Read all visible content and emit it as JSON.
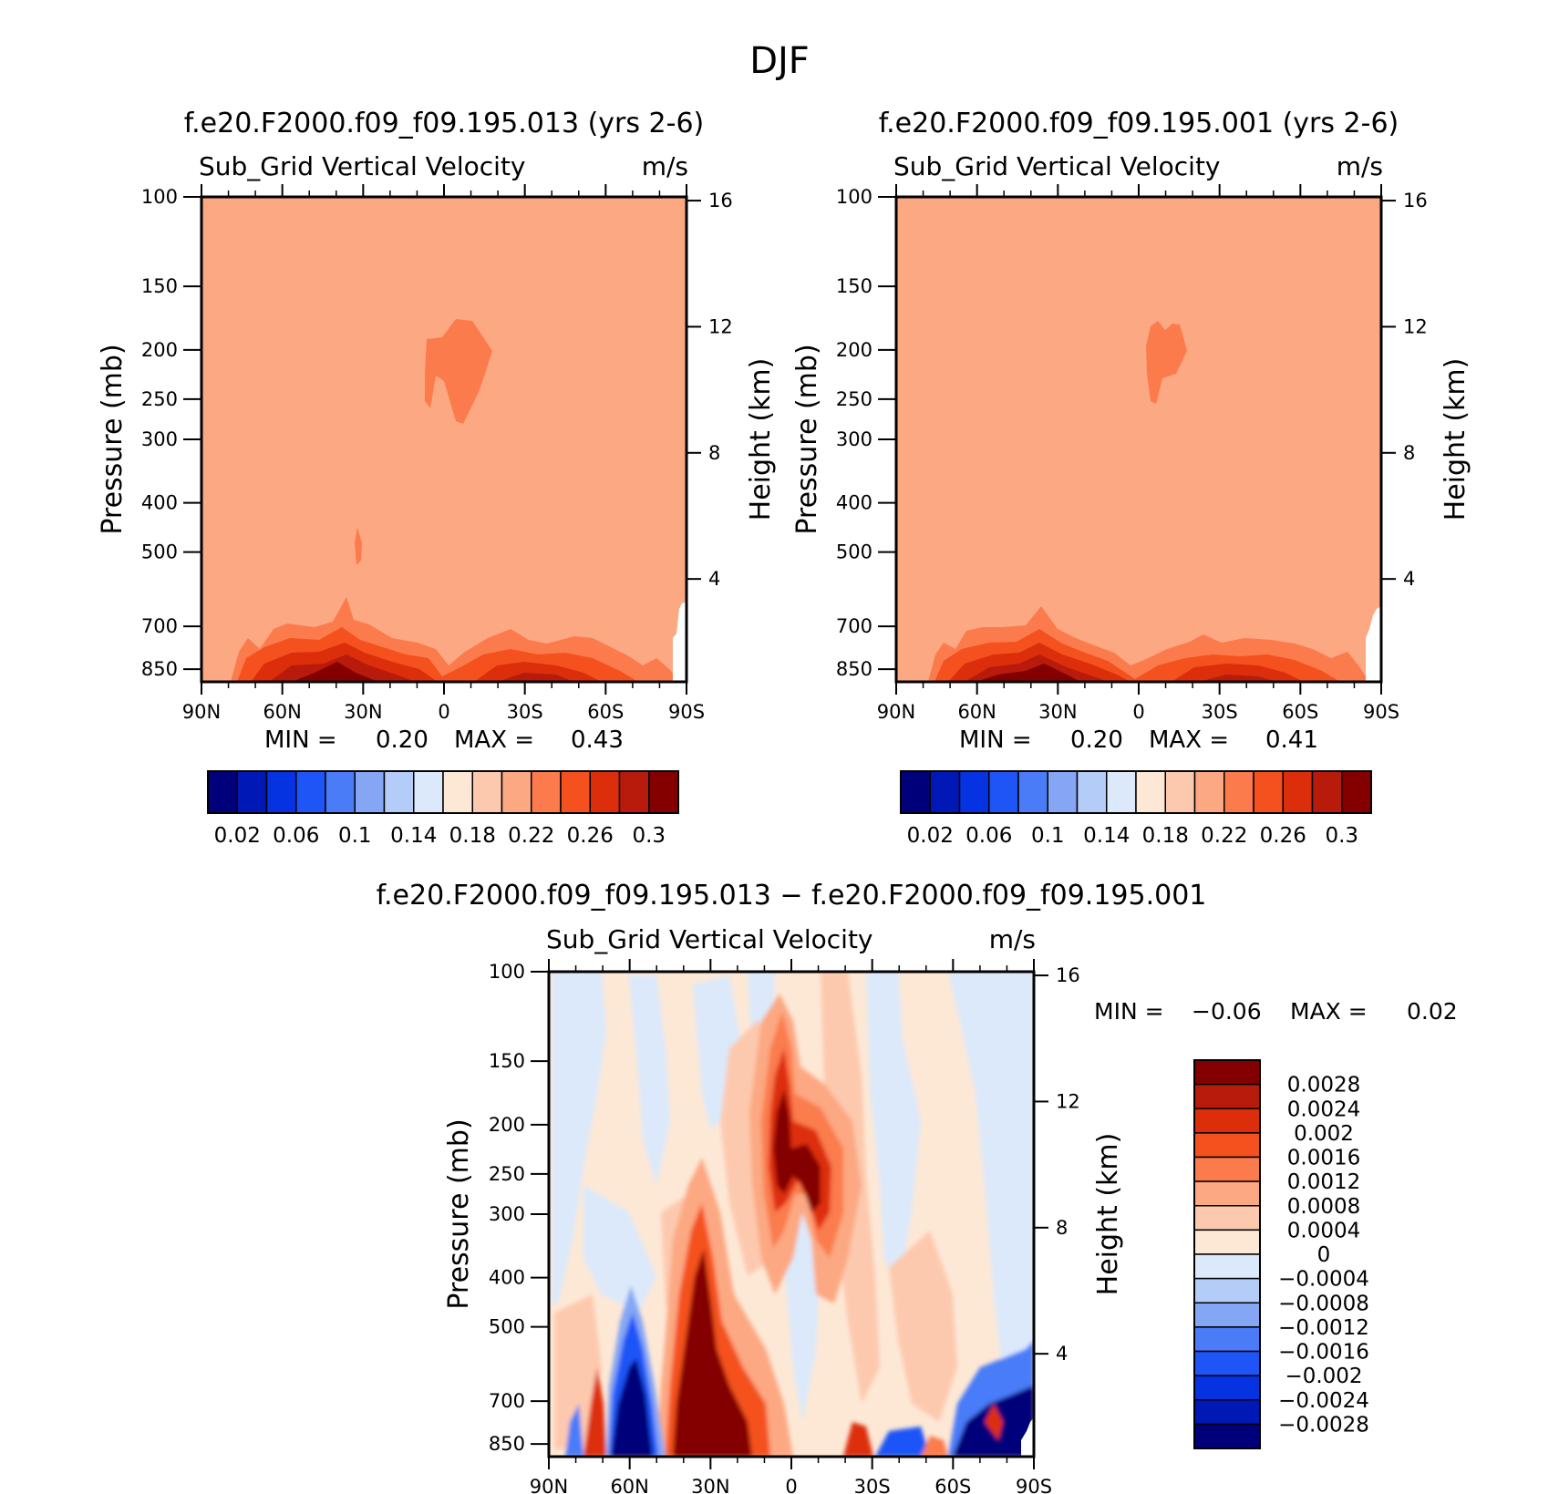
{
  "page": {
    "season": "DJF"
  },
  "panels": [
    {
      "id": "case1",
      "case_title": "f.e20.F2000.f09_f09.195.013 (yrs 2-6)",
      "field": "Sub_Grid Vertical Velocity",
      "units": "m/s",
      "stats": {
        "min_label": "MIN =",
        "min": "0.20",
        "max_label": "MAX =",
        "max": "0.43"
      }
    },
    {
      "id": "case2",
      "case_title": "f.e20.F2000.f09_f09.195.001 (yrs 2-6)",
      "field": "Sub_Grid Vertical Velocity",
      "units": "m/s",
      "stats": {
        "min_label": "MIN =",
        "min": "0.20",
        "max_label": "MAX =",
        "max": "0.41"
      }
    },
    {
      "id": "diff",
      "case_title": "f.e20.F2000.f09_f09.195.013 − f.e20.F2000.f09_f09.195.001",
      "field": "Sub_Grid Vertical Velocity",
      "units": "m/s",
      "stats": {
        "min_label": "MIN =",
        "min": "−0.06",
        "max_label": "MAX =",
        "max": "0.02"
      }
    }
  ],
  "axes": {
    "ylabel": "Pressure (mb)",
    "y2label": "Height (km)"
  },
  "colorbars": {
    "abs": {
      "colors": [
        "#00007a",
        "#0018b5",
        "#0633e2",
        "#1e55f7",
        "#4a7cf8",
        "#85a6f5",
        "#b4ccf8",
        "#dbe9fb",
        "#fde8d6",
        "#fdc9ae",
        "#fca882",
        "#fb7b4d",
        "#f4511e",
        "#dd2e0c",
        "#b81b0b",
        "#840000"
      ],
      "labels": [
        "0.02",
        "0.06",
        "0.1",
        "0.14",
        "0.18",
        "0.22",
        "0.26",
        "0.3"
      ]
    },
    "diff": {
      "colors": [
        "#840000",
        "#b81b0b",
        "#dd2e0c",
        "#f4511e",
        "#fb7b4d",
        "#fca882",
        "#fdc9ae",
        "#fde8d6",
        "#dbe9fb",
        "#b4ccf8",
        "#85a6f5",
        "#4a7cf8",
        "#1e55f7",
        "#0633e2",
        "#0018b5",
        "#00007a"
      ],
      "labels": [
        "0.0028",
        "0.0024",
        "0.002",
        "0.0016",
        "0.0012",
        "0.0008",
        "0.0004",
        "0",
        "−0.0004",
        "−0.0008",
        "−0.0012",
        "−0.0016",
        "−0.002",
        "−0.0024",
        "−0.0028"
      ]
    }
  },
  "chart_data": [
    {
      "type": "heatmap",
      "title": "f.e20.F2000.f09_f09.195.013 (yrs 2-6)",
      "subtitle": "Sub_Grid Vertical Velocity",
      "units": "m/s",
      "ylabel": "Pressure (mb)",
      "y2label": "Height (km)",
      "x_ticks": [
        "90N",
        "60N",
        "30N",
        "0",
        "30S",
        "60S",
        "90S"
      ],
      "x_range": [
        90,
        -90
      ],
      "y_ticks": [
        100,
        150,
        200,
        250,
        300,
        400,
        500,
        700,
        850
      ],
      "y_range": [
        100,
        900
      ],
      "y_scale": "log",
      "y2_ticks": [
        16,
        12,
        8,
        4
      ],
      "background_value": 0.23,
      "features": [
        {
          "name": "upper-max",
          "value": 0.25,
          "lat": [
            -10,
            8
          ],
          "p": [
            180,
            320
          ]
        },
        {
          "name": "mid-blob",
          "value": 0.25,
          "lat": [
            31,
            32
          ],
          "p": [
            450,
            530
          ]
        },
        {
          "name": "low-level-max",
          "value": 0.3,
          "lat": [
            40,
            25
          ],
          "p": [
            600,
            900
          ]
        }
      ],
      "min": 0.2,
      "max": 0.43
    },
    {
      "type": "heatmap",
      "title": "f.e20.F2000.f09_f09.195.001 (yrs 2-6)",
      "subtitle": "Sub_Grid Vertical Velocity",
      "units": "m/s",
      "ylabel": "Pressure (mb)",
      "y2label": "Height (km)",
      "x_ticks": [
        "90N",
        "60N",
        "30N",
        "0",
        "30S",
        "60S",
        "90S"
      ],
      "x_range": [
        90,
        -90
      ],
      "y_ticks": [
        100,
        150,
        200,
        250,
        300,
        400,
        500,
        700,
        850
      ],
      "y_range": [
        100,
        900
      ],
      "y_scale": "log",
      "y2_ticks": [
        16,
        12,
        8,
        4
      ],
      "background_value": 0.23,
      "features": [
        {
          "name": "upper-max",
          "value": 0.25,
          "lat": [
            -2,
            -17
          ],
          "p": [
            190,
            280
          ]
        },
        {
          "name": "low-level-max",
          "value": 0.3,
          "lat": [
            40,
            25
          ],
          "p": [
            650,
            900
          ]
        }
      ],
      "min": 0.2,
      "max": 0.41
    },
    {
      "type": "heatmap",
      "title": "f.e20.F2000.f09_f09.195.013 − f.e20.F2000.f09_f09.195.001",
      "subtitle": "Sub_Grid Vertical Velocity",
      "units": "m/s",
      "ylabel": "Pressure (mb)",
      "y2label": "Height (km)",
      "x_ticks": [
        "90N",
        "60N",
        "30N",
        "0",
        "30S",
        "60S",
        "90S"
      ],
      "x_range": [
        90,
        -90
      ],
      "y_ticks": [
        100,
        150,
        200,
        250,
        300,
        400,
        500,
        700,
        850
      ],
      "y_range": [
        100,
        900
      ],
      "y_scale": "log",
      "y2_ticks": [
        16,
        12,
        8,
        4
      ],
      "features": [
        {
          "name": "equatorial-positive-band",
          "value": 0.003,
          "lat": [
            5,
            -10
          ],
          "p": [
            130,
            500
          ]
        },
        {
          "name": "subtropical-positive-column",
          "value": 0.003,
          "lat": [
            35,
            25
          ],
          "p": [
            350,
            900
          ]
        },
        {
          "name": "midlat-negative-column",
          "value": -0.003,
          "lat": [
            60,
            45
          ],
          "p": [
            450,
            900
          ]
        },
        {
          "name": "polar-negative",
          "value": -0.003,
          "lat": [
            -70,
            -90
          ],
          "p": [
            600,
            900
          ]
        }
      ],
      "min": -0.06,
      "max": 0.02
    }
  ]
}
